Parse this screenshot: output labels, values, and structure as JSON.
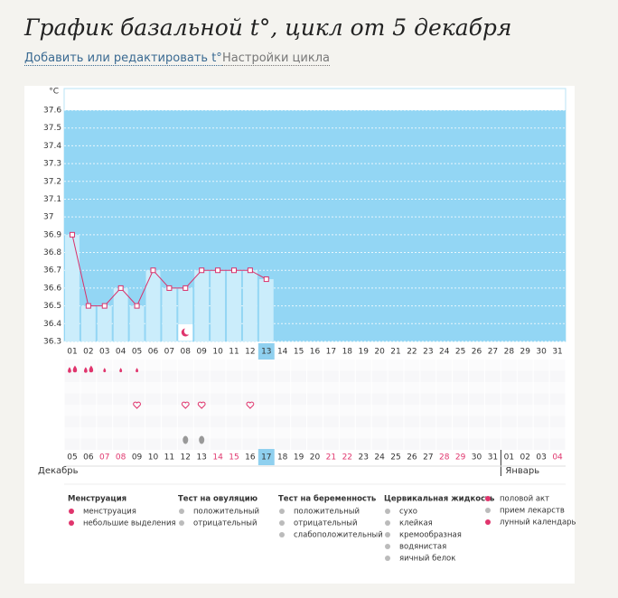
{
  "header": {
    "title": "График базальной t°, цикл от 5 декабря",
    "links": [
      "Добавить или редактировать t°",
      "Настройки цикла"
    ]
  },
  "chart_data": {
    "type": "line",
    "y_unit": "°C",
    "categories": [
      "01",
      "02",
      "03",
      "04",
      "05",
      "06",
      "07",
      "08",
      "09",
      "10",
      "11",
      "12",
      "13",
      "14",
      "15",
      "16",
      "17",
      "18",
      "19",
      "20",
      "21",
      "22",
      "23",
      "24",
      "25",
      "26",
      "27",
      "28",
      "29",
      "30",
      "31"
    ],
    "values": [
      36.9,
      36.5,
      36.5,
      36.6,
      36.5,
      36.7,
      36.6,
      36.6,
      36.7,
      36.7,
      36.7,
      36.7,
      36.65,
      null,
      null,
      null,
      null,
      null,
      null,
      null,
      null,
      null,
      null,
      null,
      null,
      null,
      null,
      null,
      null,
      null,
      null
    ],
    "ylim": [
      36.3,
      37.6
    ],
    "yticks": [
      36.3,
      36.4,
      36.5,
      36.6,
      36.7,
      36.8,
      36.9,
      37,
      37.1,
      37.2,
      37.3,
      37.4,
      37.5,
      37.6
    ],
    "grid": true,
    "line_color": "#d9306a",
    "fill_color": "#93d6f4",
    "bar_color": "#cbedfb",
    "today": "13",
    "calendar": [
      {
        "label": "05"
      },
      {
        "label": "06"
      },
      {
        "label": "07",
        "weekend": true
      },
      {
        "label": "08",
        "weekend": true
      },
      {
        "label": "09"
      },
      {
        "label": "10"
      },
      {
        "label": "11"
      },
      {
        "label": "12"
      },
      {
        "label": "13"
      },
      {
        "label": "14",
        "weekend": true
      },
      {
        "label": "15",
        "weekend": true
      },
      {
        "label": "16"
      },
      {
        "label": "17"
      },
      {
        "label": "18"
      },
      {
        "label": "19"
      },
      {
        "label": "20"
      },
      {
        "label": "21",
        "weekend": true
      },
      {
        "label": "22",
        "weekend": true
      },
      {
        "label": "23"
      },
      {
        "label": "24"
      },
      {
        "label": "25"
      },
      {
        "label": "26"
      },
      {
        "label": "27"
      },
      {
        "label": "28",
        "weekend": true
      },
      {
        "label": "29",
        "weekend": true
      },
      {
        "label": "30"
      },
      {
        "label": "31"
      },
      {
        "label": "01"
      },
      {
        "label": "02"
      },
      {
        "label": "03"
      },
      {
        "label": "04",
        "weekend": true
      }
    ],
    "today_date": "17",
    "months": [
      "Декабрь",
      "Январь"
    ],
    "events": [
      {
        "day": "01",
        "type": "menstruation"
      },
      {
        "day": "02",
        "type": "menstruation"
      },
      {
        "day": "03",
        "type": "spotting"
      },
      {
        "day": "04",
        "type": "spotting"
      },
      {
        "day": "05",
        "type": "spotting"
      },
      {
        "day": "05",
        "type": "intercourse"
      },
      {
        "day": "08",
        "type": "intercourse"
      },
      {
        "day": "09",
        "type": "intercourse"
      },
      {
        "day": "12",
        "type": "intercourse"
      },
      {
        "day": "08",
        "type": "egg_white"
      },
      {
        "day": "09",
        "type": "egg_white"
      },
      {
        "day": "08",
        "type": "moon"
      }
    ]
  },
  "legend": [
    {
      "title": "Менструация",
      "items": [
        "менструация",
        "небольшие выделения"
      ]
    },
    {
      "title": "Тест на овуляцию",
      "items": [
        "положительный",
        "отрицательный"
      ]
    },
    {
      "title": "Тест на беременность",
      "items": [
        "положительный",
        "отрицательный",
        "слабоположительный"
      ]
    },
    {
      "title": "Цервикальная жидкость",
      "items": [
        "сухо",
        "клейкая",
        "кремообразная",
        "водянистая",
        "яичный белок"
      ]
    },
    {
      "title": "",
      "items": [
        "половой акт",
        "прием лекарств",
        "лунный календарь"
      ]
    }
  ]
}
